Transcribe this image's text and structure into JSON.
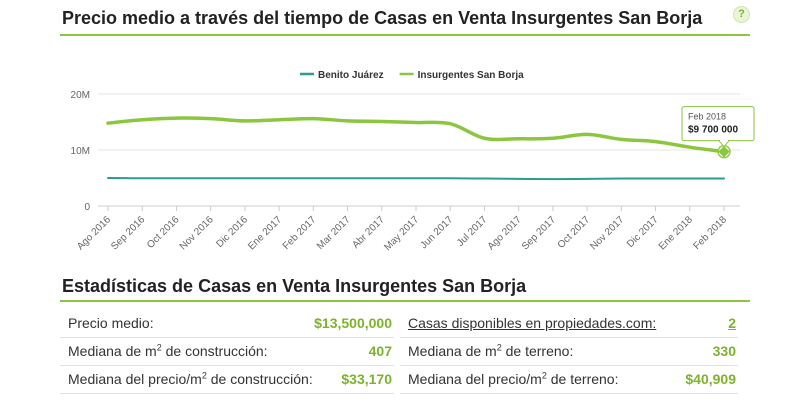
{
  "header": {
    "title": "Precio medio a través del tiempo de Casas en Venta Insurgentes San Borja",
    "help_label": "?"
  },
  "chart_data": {
    "type": "line",
    "title": "Precio medio a través del tiempo de Casas en Venta Insurgentes San Borja",
    "x": [
      "Ago 2016",
      "Sep 2016",
      "Oct 2016",
      "Nov 2016",
      "Dic 2016",
      "Ene 2017",
      "Feb 2017",
      "Mar 2017",
      "Abr 2017",
      "May 2017",
      "Jun 2017",
      "Jul 2017",
      "Ago 2017",
      "Sep 2017",
      "Oct 2017",
      "Nov 2017",
      "Dic 2017",
      "Ene 2018",
      "Feb 2018"
    ],
    "yticks": [
      "0",
      "10M",
      "20M"
    ],
    "ylim": [
      0,
      20000000
    ],
    "legend_position": "top-center",
    "grid": true,
    "series": [
      {
        "name": "Benito Juárez",
        "color": "#2a9d8f",
        "values": [
          5000000,
          4950000,
          4950000,
          4950000,
          4950000,
          4950000,
          4950000,
          4950000,
          4950000,
          4950000,
          4950000,
          4900000,
          4850000,
          4800000,
          4850000,
          4900000,
          4900000,
          4900000,
          4900000
        ]
      },
      {
        "name": "Insurgentes San Borja",
        "color": "#8cc63f",
        "values": [
          14800000,
          15400000,
          15700000,
          15600000,
          15200000,
          15400000,
          15600000,
          15200000,
          15100000,
          14900000,
          14700000,
          12100000,
          12000000,
          12100000,
          12800000,
          11900000,
          11500000,
          10500000,
          9700000
        ]
      }
    ],
    "tooltip": {
      "label": "Feb 2018",
      "value": "$9 700 000"
    }
  },
  "stats": {
    "title": "Estadísticas de Casas en Venta Insurgentes San Borja",
    "rows": [
      {
        "left": {
          "label": "Precio medio:",
          "value": "$13,500,000"
        },
        "right": {
          "label": "Casas disponibles en propiedades.com:",
          "value": "2"
        }
      },
      {
        "left": {
          "label_pre": "Mediana de m",
          "label_sup": "2",
          "label_post": " de construcción:",
          "value": "407"
        },
        "right": {
          "label_pre": "Mediana de m",
          "label_sup": "2",
          "label_post": " de terreno:",
          "value": "330"
        }
      },
      {
        "left": {
          "label_pre": "Mediana del precio/m",
          "label_sup": "2",
          "label_post": " de construcción:",
          "value": "$33,170"
        },
        "right": {
          "label_pre": "Mediana del precio/m",
          "label_sup": "2",
          "label_post": " de terreno:",
          "value": "$40,909"
        }
      }
    ]
  }
}
